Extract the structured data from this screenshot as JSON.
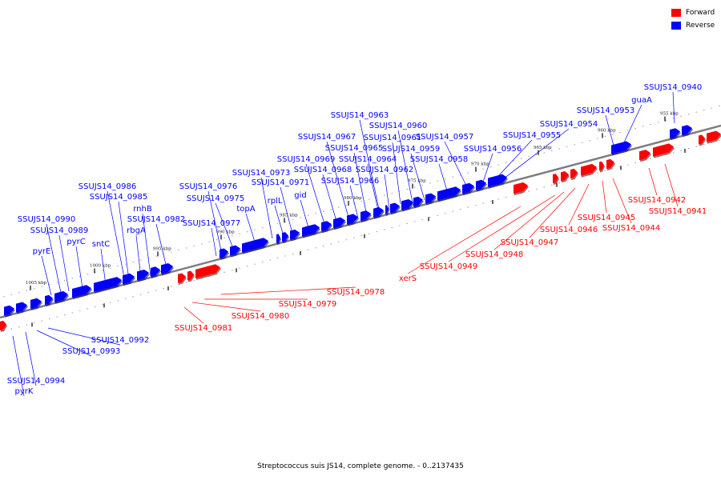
{
  "legend": [
    {
      "label": "Forward",
      "color": "#ff0000"
    },
    {
      "label": "Reverse",
      "color": "#0000ff"
    }
  ],
  "caption": "Streptococcus suis JS14, complete genome. - 0..2137435",
  "scale_labels": [
    "955 kbp",
    "960 kbp",
    "965 kbp",
    "970 kbp",
    "975 kbp",
    "980 kbp",
    "985 kbp",
    "990 kbp",
    "995 kbp",
    "1000 kbp",
    "1005 kbp"
  ],
  "reverse_labels": [
    "SSUJS14_0940",
    "guaA",
    "SSUJS14_0953",
    "SSUJS14_0954",
    "SSUJS14_0955",
    "SSUJS14_0956",
    "SSUJS14_0957",
    "SSUJS14_0958",
    "SSUJS14_0959",
    "SSUJS14_0960",
    "SSUJS14_0961",
    "SSUJS14_0962",
    "SSUJS14_0963",
    "SSUJS14_0964",
    "SSUJS14_0965",
    "SSUJS14_0966",
    "SSUJS14_0967",
    "SSUJS14_0968",
    "SSUJS14_0969",
    "gid",
    "SSUJS14_0971",
    "rplL",
    "SSUJS14_0973",
    "topA",
    "SSUJS14_0975",
    "SSUJS14_0976",
    "SSUJS14_0977",
    "SSUJS14_0982",
    "rnhB",
    "rbgA",
    "SSUJS14_0985",
    "SSUJS14_0986",
    "sntC",
    "pyrC",
    "SSUJS14_0989",
    "SSUJS14_0990",
    "pyrE",
    "SSUJS14_0992",
    "SSUJS14_0993",
    "SSUJS14_0994",
    "pyrK"
  ],
  "forward_labels": [
    "SSUJS14_0941",
    "SSUJS14_0942",
    "SSUJS14_0944",
    "SSUJS14_0945",
    "SSUJS14_0946",
    "SSUJS14_0947",
    "SSUJS14_0948",
    "SSUJS14_0949",
    "xerS",
    "SSUJS14_0978",
    "SSUJS14_0979",
    "SSUJS14_0980",
    "SSUJS14_0981"
  ],
  "colors": {
    "forward": "#ff0000",
    "reverse": "#0000ff",
    "axis": "#7f7f7f"
  }
}
